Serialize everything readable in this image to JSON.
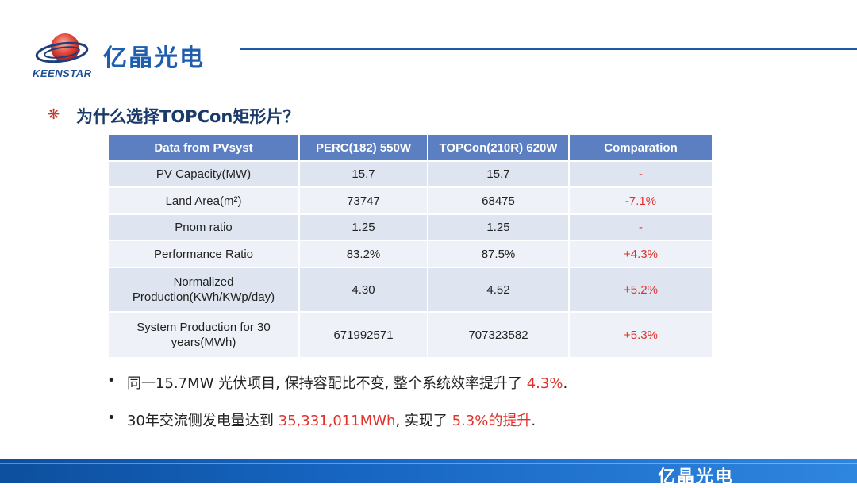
{
  "brand": {
    "name_cn": "亿晶光电",
    "name_en": "KEENSTAR",
    "colors": {
      "primary": "#1d5fae",
      "accent_red": "#e0312b",
      "header_blue": "#5b7fc0"
    }
  },
  "slide": {
    "bullet_icon": "asterisk-icon",
    "title": "为什么选择TOPCon矩形片？"
  },
  "table": {
    "headers": [
      "Data from PVsyst",
      "PERC(182) 550W",
      "TOPCon(210R) 620W",
      "Comparation"
    ],
    "rows": [
      {
        "label": "PV Capacity(MW)",
        "perc": "15.7",
        "topcon": "15.7",
        "comparation": "-"
      },
      {
        "label": "Land Area(m²)",
        "perc": "73747",
        "topcon": "68475",
        "comparation": "-7.1%"
      },
      {
        "label": "Pnom ratio",
        "perc": "1.25",
        "topcon": "1.25",
        "comparation": "-"
      },
      {
        "label": "Performance Ratio",
        "perc": "83.2%",
        "topcon": "87.5%",
        "comparation": "+4.3%"
      },
      {
        "label_line1": "Normalized",
        "label_line2": "Production(KWh/KWp/day)",
        "perc": "4.30",
        "topcon": "4.52",
        "comparation": "+5.2%"
      },
      {
        "label_line1": "System Production for 30",
        "label_line2": "years(MWh)",
        "perc": "671992571",
        "topcon": "707323582",
        "comparation": "+5.3%"
      }
    ]
  },
  "bullets": [
    {
      "marker": "•",
      "text_before": "同一15.7MW 光伏项目, 保持容配比不变, 整个系统效率提升了 ",
      "highlight": "4.3%",
      "text_after": "."
    },
    {
      "marker": "•",
      "text_before": "30年交流侧发电量达到 ",
      "highlight": "35,331,011MWh",
      "text_middle": ", 实现了 ",
      "highlight2": "5.3%的提升",
      "text_after": "."
    }
  ],
  "footer": {
    "brand": "亿晶光电"
  }
}
